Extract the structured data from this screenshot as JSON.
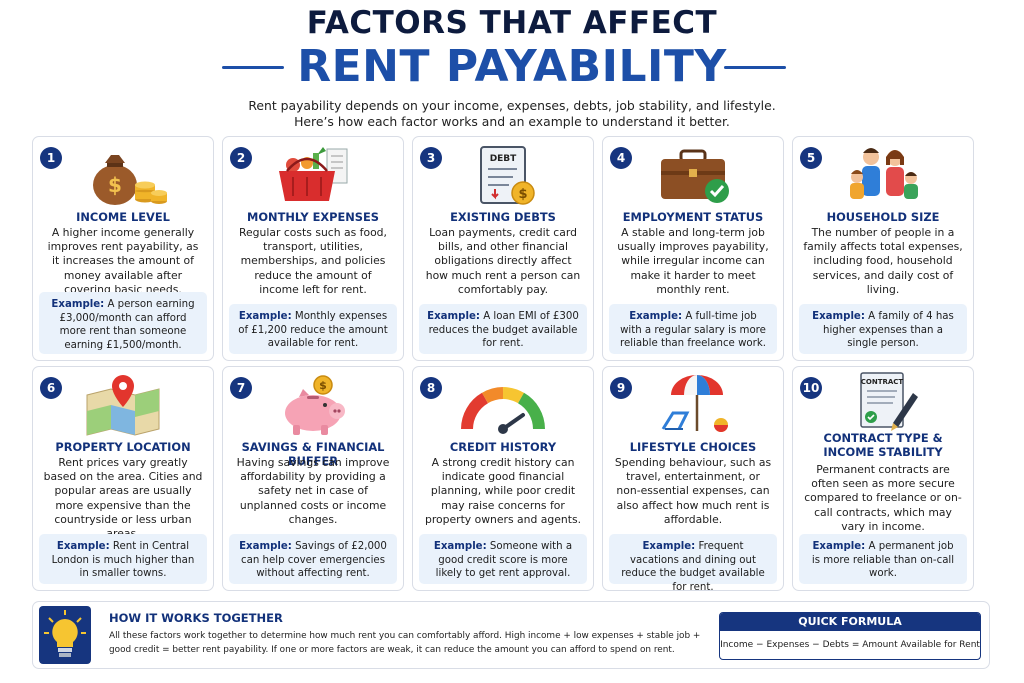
{
  "header": {
    "title_line1": "FACTORS THAT AFFECT",
    "title_line2": "RENT PAYABILITY",
    "subtitle_line1": "Rent payability depends on your income, expenses, debts, job stability, and lifestyle.",
    "subtitle_line2": "Here’s how each factor works and an example to understand it better."
  },
  "example_label": "Example:",
  "cards": [
    {
      "num": "1",
      "icon": "money-bag-icon",
      "title": "INCOME LEVEL",
      "desc": "A higher income generally improves rent payability, as it increases the amount of money available after covering basic needs.",
      "example": "A person earning £3,000/month can afford more rent than someone earning £1,500/month."
    },
    {
      "num": "2",
      "icon": "shopping-basket-icon",
      "title": "MONTHLY EXPENSES",
      "desc": "Regular costs such as food, transport, utilities, memberships, and policies reduce the amount of income left for rent.",
      "example": "Monthly expenses of £1,200 reduce the amount available for rent."
    },
    {
      "num": "3",
      "icon": "debt-document-icon",
      "title": "EXISTING DEBTS",
      "icon_text": "DEBT",
      "desc": "Loan payments, credit card bills, and other financial obligations directly affect how much rent a person can comfortably pay.",
      "example": "A loan EMI of £300 reduces the budget available for rent."
    },
    {
      "num": "4",
      "icon": "briefcase-check-icon",
      "title": "EMPLOYMENT STATUS",
      "desc": "A stable and long-term job usually improves payability, while irregular income can make it harder to meet monthly rent.",
      "example": "A full-time job with a regular salary is more reliable than freelance work."
    },
    {
      "num": "5",
      "icon": "family-icon",
      "title": "HOUSEHOLD SIZE",
      "desc": "The number of people in a family affects total expenses, including food, household services, and daily cost of living.",
      "example": "A family of 4 has higher expenses than a single person."
    },
    {
      "num": "6",
      "icon": "map-pin-icon",
      "title": "PROPERTY LOCATION",
      "desc": "Rent prices vary greatly based on the area. Cities and popular areas are usually more expensive than the countryside or less urban areas.",
      "example": "Rent in Central London is much higher than in smaller towns."
    },
    {
      "num": "7",
      "icon": "piggy-bank-icon",
      "title": "SAVINGS & FINANCIAL BUFFER",
      "desc": "Having savings can improve affordability by providing a safety net in case of unplanned costs or income changes.",
      "example": "Savings of £2,000 can help cover emergencies without affecting rent."
    },
    {
      "num": "8",
      "icon": "credit-gauge-icon",
      "title": "CREDIT HISTORY",
      "desc": "A strong credit history can indicate good financial planning, while poor credit may raise concerns for property owners and agents.",
      "example": "Someone with a good credit score is more likely to get rent approval."
    },
    {
      "num": "9",
      "icon": "beach-umbrella-icon",
      "title": "LIFESTYLE CHOICES",
      "desc": "Spending behaviour, such as travel, entertainment, or non-essential expenses, can also affect how much rent is affordable.",
      "example": "Frequent vacations and dining out reduce the budget available for rent."
    },
    {
      "num": "10",
      "icon": "contract-pen-icon",
      "title_line1": "CONTRACT TYPE &",
      "title_line2": "INCOME STABILITY",
      "icon_text": "CONTRACT",
      "desc": "Permanent contracts are often seen as more secure compared to freelance or on-call contracts, which may vary in income.",
      "example": "A permanent job is more reliable than on-call work."
    }
  ],
  "how_it_works": {
    "icon": "lightbulb-icon",
    "title": "HOW IT WORKS TOGETHER",
    "text": "All these factors work together to determine how much rent you can comfortably afford. High income + low expenses + stable job + good credit = better rent payability. If one or more factors are weak, it can reduce the amount you can afford to spend on rent."
  },
  "quick_formula": {
    "title": "QUICK FORMULA",
    "formula": "Income − Expenses − Debts = Amount Available for Rent"
  },
  "colors": {
    "navy": "#16357f",
    "title_blue": "#1d4fa8",
    "example_bg": "#eaf2fb",
    "card_border": "#d9dde6"
  }
}
